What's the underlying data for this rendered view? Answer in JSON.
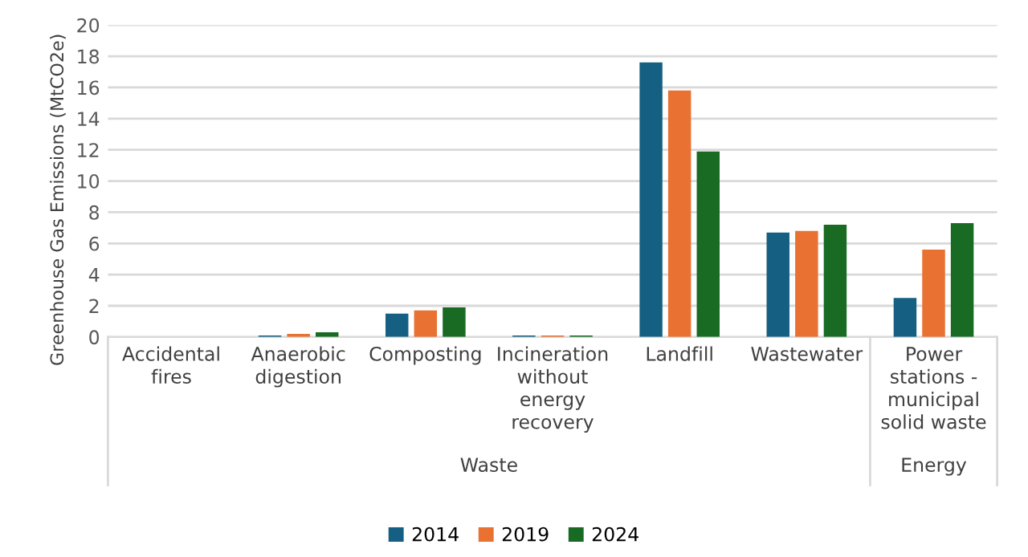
{
  "chart_data": {
    "type": "bar",
    "ylabel": "Greenhouse Gas Emissions (MtCO2e)",
    "categories": [
      "Accidental fires",
      "Anaerobic digestion",
      "Composting",
      "Incineration without energy recovery",
      "Landfill",
      "Wastewater",
      "Power stations - municipal solid waste"
    ],
    "series": [
      {
        "name": "2014",
        "color": "#156082",
        "values": [
          0,
          0.1,
          1.5,
          0.1,
          17.6,
          6.7,
          2.5
        ]
      },
      {
        "name": "2019",
        "color": "#e97132",
        "values": [
          0,
          0.2,
          1.7,
          0.1,
          15.8,
          6.8,
          5.6
        ]
      },
      {
        "name": "2024",
        "color": "#196b24",
        "values": [
          0,
          0.3,
          1.9,
          0.1,
          11.9,
          7.2,
          7.3
        ]
      }
    ],
    "annotations": [
      "Waste",
      "Energy"
    ],
    "ylim": [
      0,
      20
    ],
    "yticks": [
      0,
      2,
      4,
      6,
      8,
      10,
      12,
      14,
      16,
      18,
      20
    ],
    "grid": "y",
    "legend": "bottom"
  }
}
